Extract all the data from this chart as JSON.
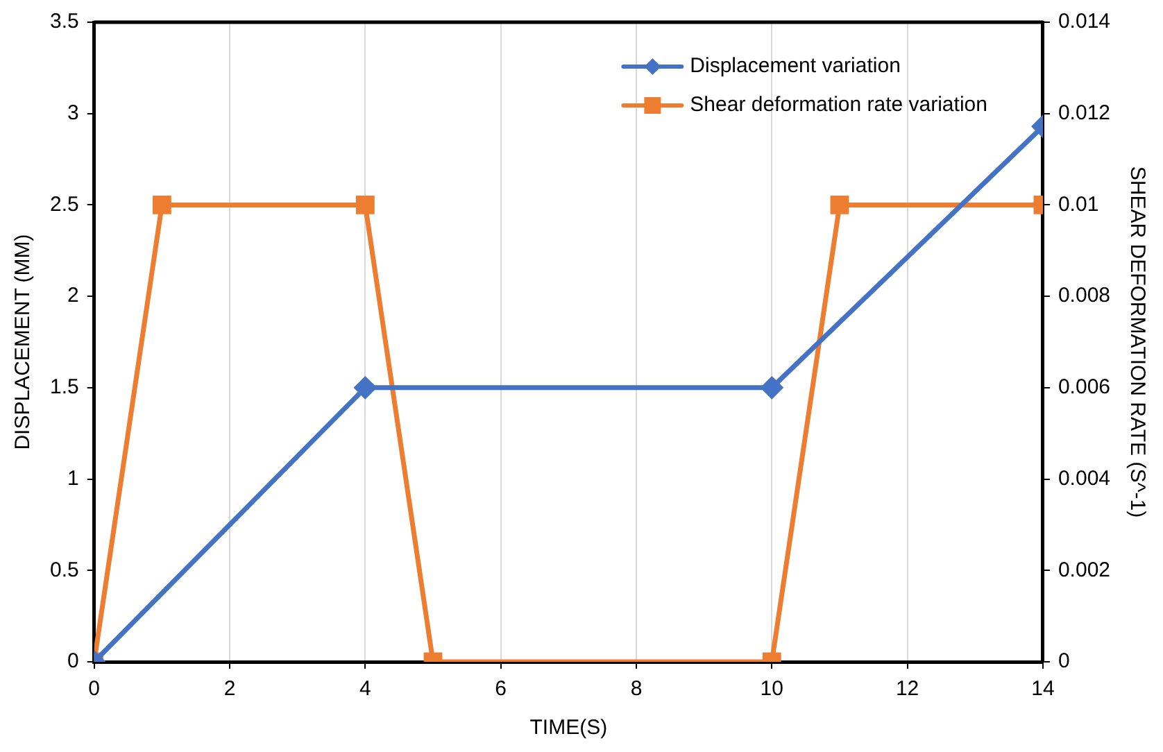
{
  "chart_data": {
    "type": "line",
    "xlabel": "TIME(S)",
    "ylabel": "DISPLACEMENT (MM)",
    "y2label": "SHEAR DEFORMATION RATE (S^-1)",
    "xlim": [
      0,
      14
    ],
    "xticks": [
      0,
      2,
      4,
      6,
      8,
      10,
      12,
      14
    ],
    "ylim": [
      0,
      3.5
    ],
    "yticks": [
      0,
      0.5,
      1,
      1.5,
      2,
      2.5,
      3,
      3.5
    ],
    "y2lim": [
      0,
      0.014
    ],
    "y2ticks": [
      0,
      0.002,
      0.004,
      0.006,
      0.008,
      0.01,
      0.012,
      0.014
    ],
    "grid": "x",
    "legend": "top right",
    "line_style": "solid",
    "series": [
      {
        "name": "Displacement variation",
        "color": "#4472c4",
        "marker": "diamond",
        "x": [
          0,
          4,
          10,
          14
        ],
        "values": [
          0,
          1.5,
          1.5,
          2.93
        ]
      },
      {
        "name": "Shear deformation rate variation",
        "color": "#ed7d31",
        "marker": "square",
        "axis": "y2",
        "x": [
          0,
          1,
          4,
          5,
          10,
          11,
          14
        ],
        "values": [
          0,
          0.01,
          0.01,
          0,
          0,
          0.01,
          0.01
        ]
      }
    ]
  }
}
